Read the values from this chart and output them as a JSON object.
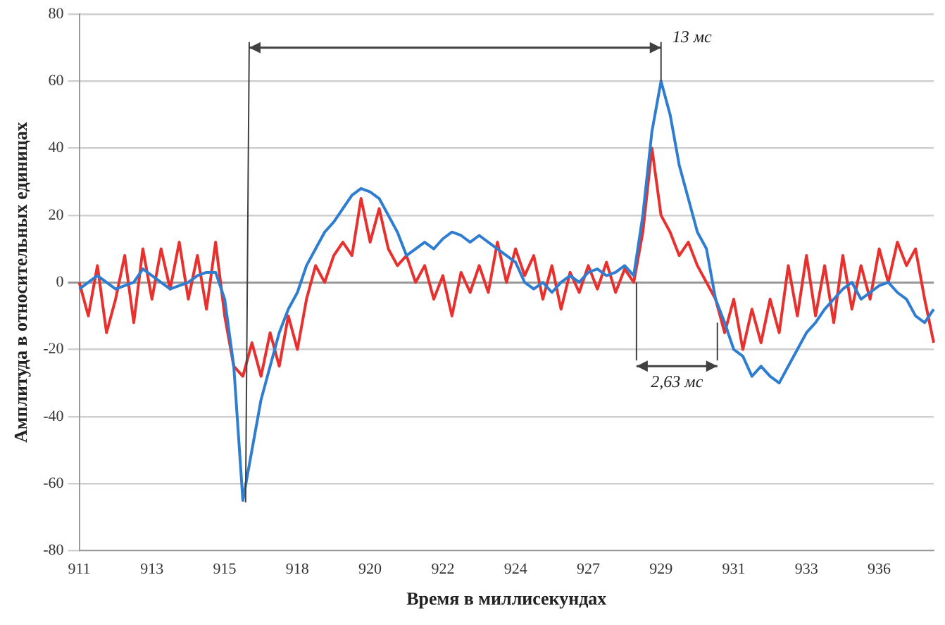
{
  "chart_data": {
    "type": "line",
    "xlabel": "Время в миллисекундах",
    "ylabel": "Амплитуда в относительных единицах",
    "categories": [
      "911",
      null,
      null,
      null,
      null,
      null,
      null,
      null,
      "913",
      null,
      null,
      null,
      null,
      null,
      null,
      null,
      "915",
      null,
      null,
      null,
      null,
      null,
      null,
      null,
      "918",
      null,
      null,
      null,
      null,
      null,
      null,
      null,
      "920",
      null,
      null,
      null,
      null,
      null,
      null,
      null,
      "922",
      null,
      null,
      null,
      null,
      null,
      null,
      null,
      "924",
      null,
      null,
      null,
      null,
      null,
      null,
      null,
      "927",
      null,
      null,
      null,
      null,
      null,
      null,
      null,
      "929",
      null,
      null,
      null,
      null,
      null,
      null,
      null,
      "931",
      null,
      null,
      null,
      null,
      null,
      null,
      null,
      "933",
      null,
      null,
      null,
      null,
      null,
      null,
      null,
      "936",
      null,
      null,
      null,
      null,
      null,
      null
    ],
    "series": [
      {
        "color": "#2e7dd1",
        "values": [
          -2,
          0,
          2,
          0,
          -2,
          -1,
          0,
          4,
          2,
          0,
          -2,
          -1,
          0,
          2,
          3,
          3,
          -5,
          -25,
          -65,
          -50,
          -35,
          -25,
          -15,
          -8,
          -3,
          5,
          10,
          15,
          18,
          22,
          26,
          28,
          27,
          25,
          20,
          15,
          8,
          10,
          12,
          10,
          13,
          15,
          14,
          12,
          14,
          12,
          10,
          8,
          6,
          0,
          -2,
          0,
          -3,
          0,
          2,
          0,
          3,
          4,
          2,
          3,
          5,
          2,
          20,
          45,
          60,
          50,
          35,
          25,
          15,
          10,
          -5,
          -12,
          -20,
          -22,
          -28,
          -25,
          -28,
          -30,
          -25,
          -20,
          -15,
          -12,
          -8,
          -5,
          -2,
          0,
          -5,
          -3,
          -1,
          0,
          -3,
          -5,
          -10,
          -12,
          -8
        ]
      },
      {
        "color": "#e8312f",
        "values": [
          0,
          -10,
          5,
          -15,
          -5,
          8,
          -12,
          10,
          -5,
          10,
          -2,
          12,
          -5,
          8,
          -8,
          12,
          -10,
          -25,
          -28,
          -18,
          -28,
          -15,
          -25,
          -10,
          -20,
          -5,
          5,
          0,
          8,
          12,
          8,
          25,
          12,
          22,
          10,
          5,
          8,
          0,
          5,
          -5,
          2,
          -10,
          3,
          -3,
          5,
          -3,
          12,
          0,
          10,
          2,
          8,
          -5,
          5,
          -8,
          3,
          -3,
          5,
          -2,
          6,
          -3,
          4,
          0,
          15,
          40,
          20,
          15,
          8,
          12,
          5,
          0,
          -5,
          -15,
          -5,
          -20,
          -8,
          -18,
          -5,
          -15,
          5,
          -10,
          8,
          -10,
          5,
          -12,
          8,
          -8,
          5,
          -5,
          10,
          0,
          12,
          5,
          10,
          -5,
          -18
        ]
      }
    ],
    "ylim": [
      -80,
      80
    ],
    "yticks": [
      -80,
      -60,
      -40,
      -20,
      0,
      20,
      40,
      60,
      80
    ],
    "grid": "y",
    "legend": false,
    "marker": "none",
    "line_style": "solid",
    "annotations": [
      "13 мс",
      "2,63 мс"
    ]
  }
}
